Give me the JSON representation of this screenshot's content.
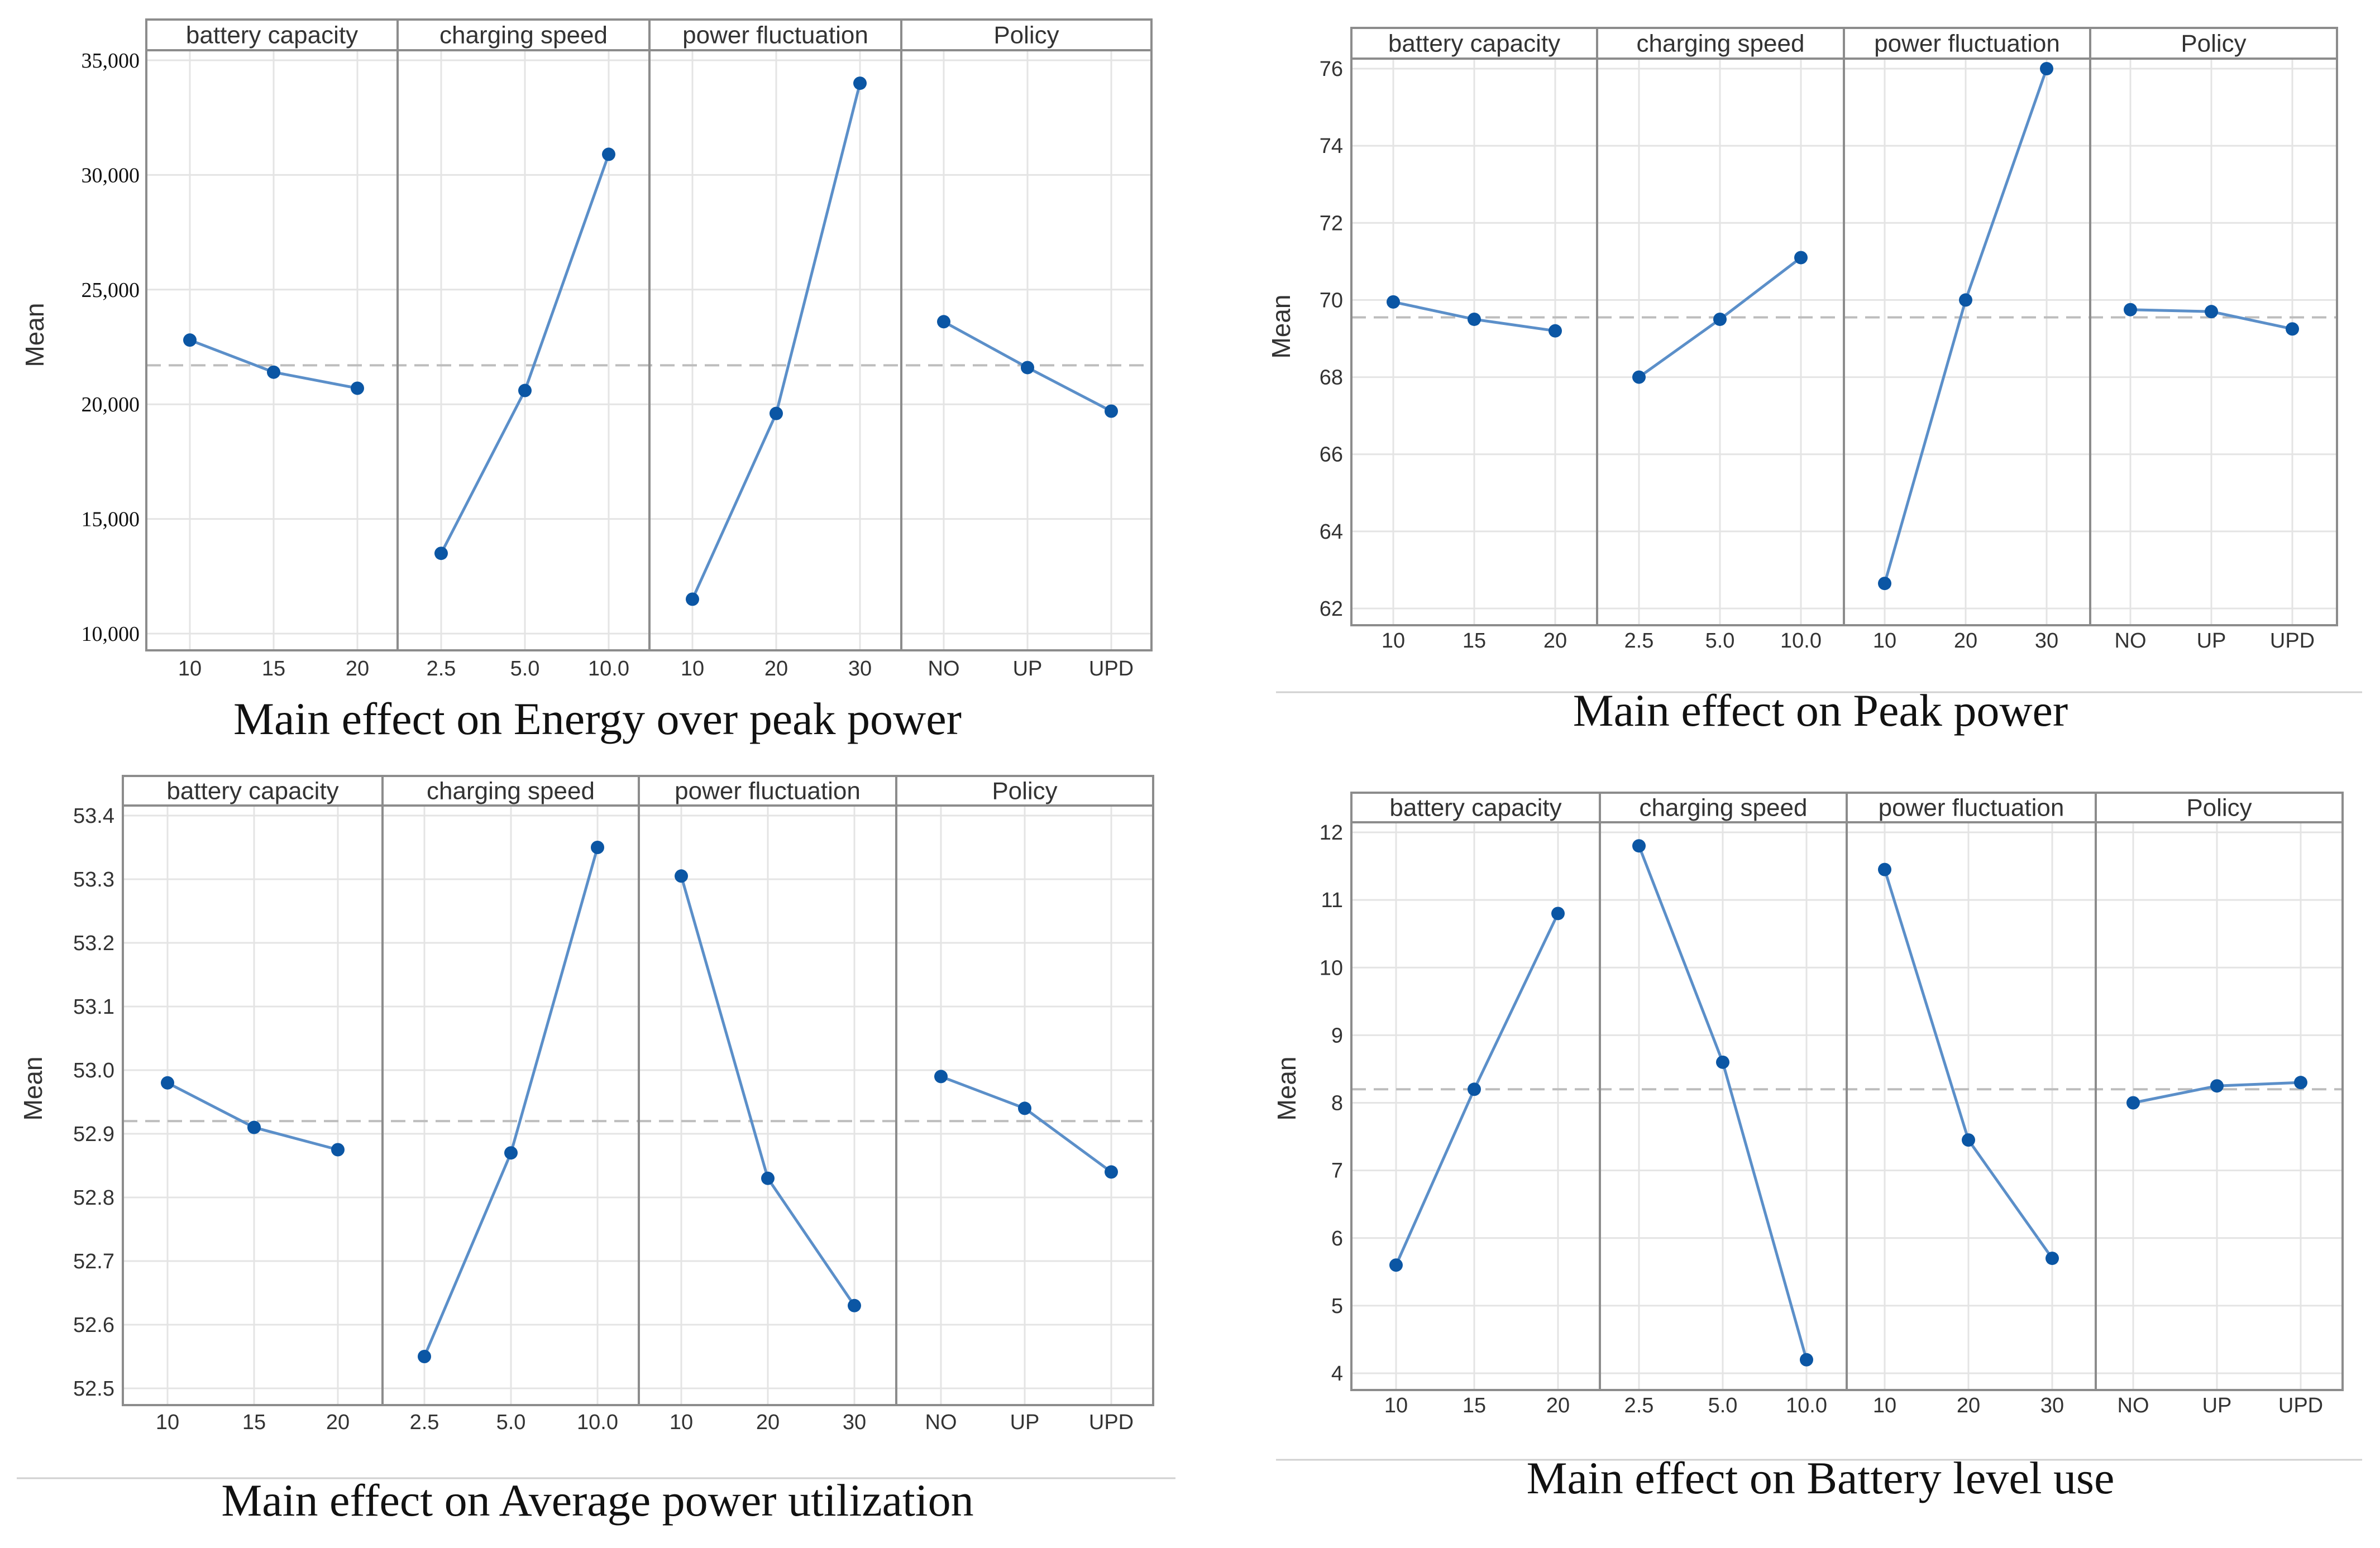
{
  "figure": {
    "panel_headers": [
      "battery capacity",
      "charging speed",
      "power fluctuation",
      "Policy"
    ]
  },
  "chart_data": [
    {
      "type": "line",
      "title": "Main effect on Energy over peak power",
      "ylabel": "Mean",
      "ylim": [
        10000,
        35000
      ],
      "yticks": [
        10000,
        15000,
        20000,
        25000,
        30000,
        35000
      ],
      "ytick_labels": [
        "10,000",
        "15,000",
        "20,000",
        "25,000",
        "30,000",
        "35,000"
      ],
      "grand_mean": 21700,
      "grid": true,
      "panels": [
        {
          "factor": "battery capacity",
          "categories": [
            "10",
            "15",
            "20"
          ],
          "values": [
            22800,
            21400,
            20700
          ]
        },
        {
          "factor": "charging speed",
          "categories": [
            "2.5",
            "5.0",
            "10.0"
          ],
          "values": [
            13500,
            20600,
            30900
          ]
        },
        {
          "factor": "power fluctuation",
          "categories": [
            "10",
            "20",
            "30"
          ],
          "values": [
            11500,
            19600,
            34000
          ]
        },
        {
          "factor": "Policy",
          "categories": [
            "NO",
            "UP",
            "UPD"
          ],
          "values": [
            23600,
            21600,
            19700
          ]
        }
      ]
    },
    {
      "type": "line",
      "title": "Main effect on Peak power",
      "ylabel": "Mean",
      "ylim": [
        62,
        76
      ],
      "yticks": [
        62,
        64,
        66,
        68,
        70,
        72,
        74,
        76
      ],
      "ytick_labels": [
        "62",
        "64",
        "66",
        "68",
        "70",
        "72",
        "74",
        "76"
      ],
      "grand_mean": 69.55,
      "grid": true,
      "panels": [
        {
          "factor": "battery capacity",
          "categories": [
            "10",
            "15",
            "20"
          ],
          "values": [
            69.95,
            69.5,
            69.2
          ]
        },
        {
          "factor": "charging speed",
          "categories": [
            "2.5",
            "5.0",
            "10.0"
          ],
          "values": [
            68.0,
            69.5,
            71.1
          ]
        },
        {
          "factor": "power fluctuation",
          "categories": [
            "10",
            "20",
            "30"
          ],
          "values": [
            62.65,
            70.0,
            76.0
          ]
        },
        {
          "factor": "Policy",
          "categories": [
            "NO",
            "UP",
            "UPD"
          ],
          "values": [
            69.75,
            69.7,
            69.25
          ]
        }
      ]
    },
    {
      "type": "line",
      "title": "Main effect on Average power utilization",
      "ylabel": "Mean",
      "ylim": [
        52.5,
        53.4
      ],
      "yticks": [
        52.5,
        52.6,
        52.7,
        52.8,
        52.9,
        53.0,
        53.1,
        53.2,
        53.3,
        53.4
      ],
      "ytick_labels": [
        "52.5",
        "52.6",
        "52.7",
        "52.8",
        "52.9",
        "53.0",
        "53.1",
        "53.2",
        "53.3",
        "53.4"
      ],
      "grand_mean": 52.92,
      "grid": true,
      "panels": [
        {
          "factor": "battery capacity",
          "categories": [
            "10",
            "15",
            "20"
          ],
          "values": [
            52.98,
            52.91,
            52.875
          ]
        },
        {
          "factor": "charging speed",
          "categories": [
            "2.5",
            "5.0",
            "10.0"
          ],
          "values": [
            52.55,
            52.87,
            53.35
          ]
        },
        {
          "factor": "power fluctuation",
          "categories": [
            "10",
            "20",
            "30"
          ],
          "values": [
            53.305,
            52.83,
            52.63
          ]
        },
        {
          "factor": "Policy",
          "categories": [
            "NO",
            "UP",
            "UPD"
          ],
          "values": [
            52.99,
            52.94,
            52.84
          ]
        }
      ]
    },
    {
      "type": "line",
      "title": "Main effect on Battery level use",
      "ylabel": "Mean",
      "ylim": [
        4,
        12
      ],
      "yticks": [
        4,
        5,
        6,
        7,
        8,
        9,
        10,
        11,
        12
      ],
      "ytick_labels": [
        "4",
        "5",
        "6",
        "7",
        "8",
        "9",
        "10",
        "11",
        "12"
      ],
      "grand_mean": 8.2,
      "grid": true,
      "panels": [
        {
          "factor": "battery capacity",
          "categories": [
            "10",
            "15",
            "20"
          ],
          "values": [
            5.6,
            8.2,
            10.8
          ]
        },
        {
          "factor": "charging speed",
          "categories": [
            "2.5",
            "5.0",
            "10.0"
          ],
          "values": [
            11.8,
            8.6,
            4.2
          ]
        },
        {
          "factor": "power fluctuation",
          "categories": [
            "10",
            "20",
            "30"
          ],
          "values": [
            11.45,
            7.45,
            5.7
          ]
        },
        {
          "factor": "Policy",
          "categories": [
            "NO",
            "UP",
            "UPD"
          ],
          "values": [
            8.0,
            8.25,
            8.3
          ]
        }
      ]
    }
  ],
  "colors": {
    "line": "#5b8fc9",
    "marker": "#0b56a4",
    "grid": "#e4e4e4",
    "reference_line": "#bdbdbd",
    "frame": "#8c8c8c",
    "text": "#333333"
  }
}
